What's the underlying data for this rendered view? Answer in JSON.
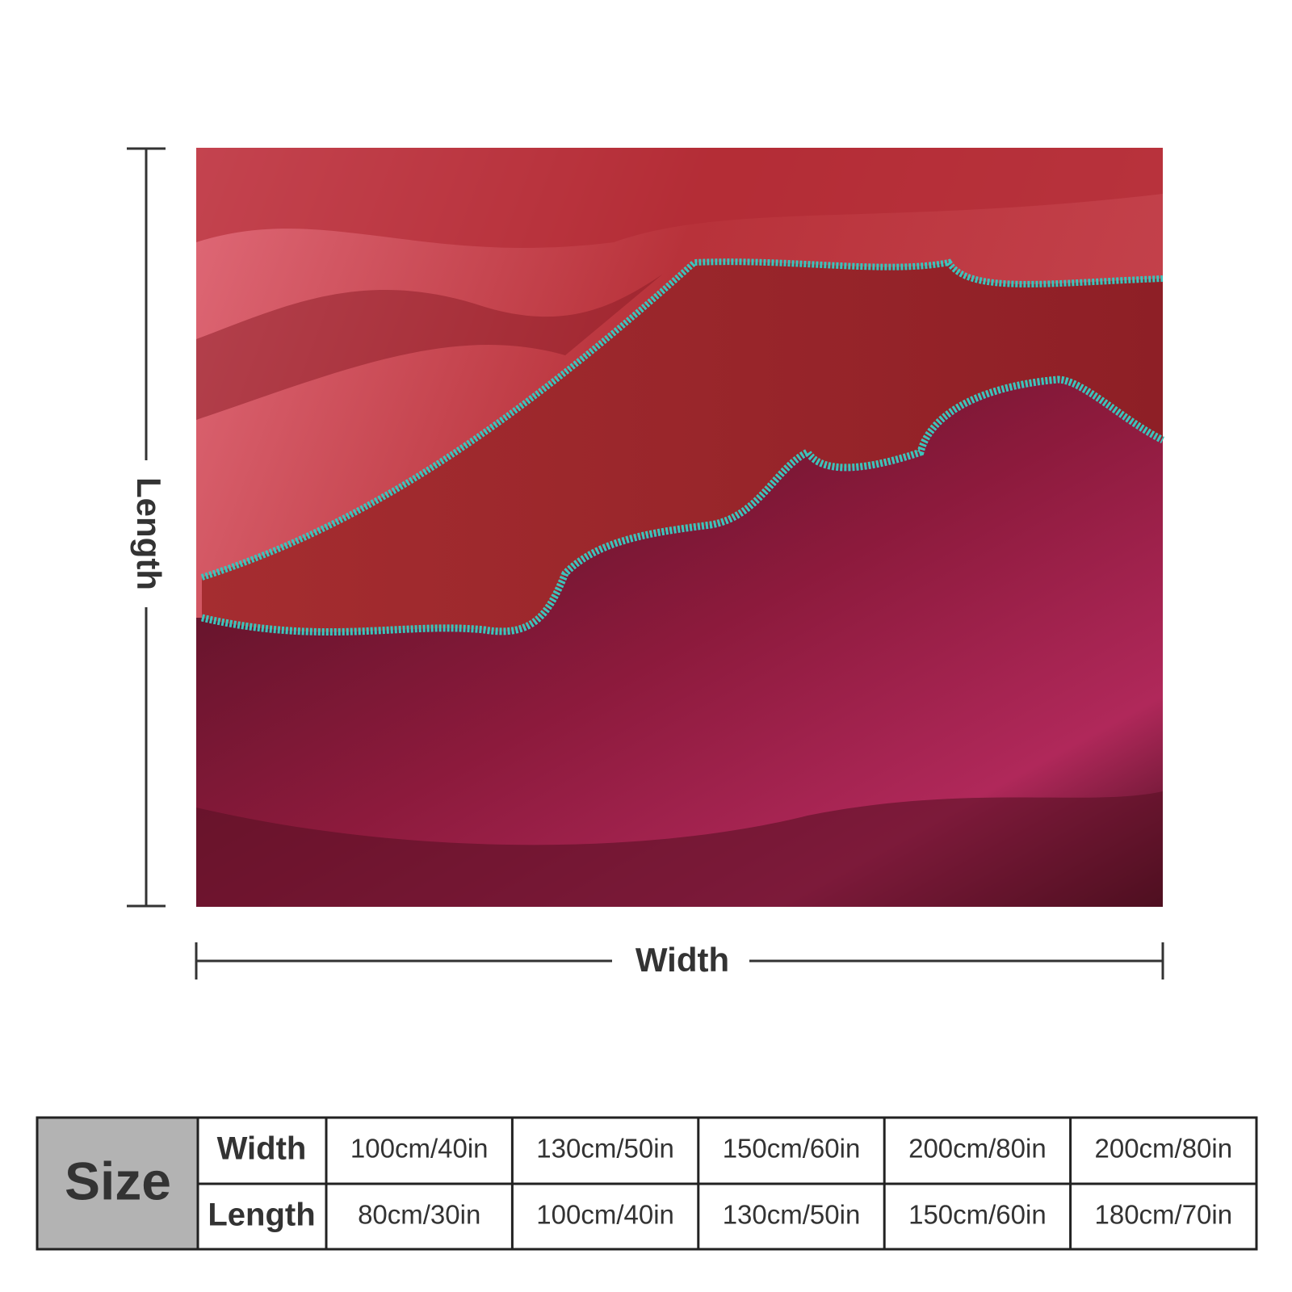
{
  "dimensions": {
    "length_label": "Length",
    "width_label": "Width"
  },
  "size_table": {
    "title": "Size",
    "rows": [
      {
        "label": "Width",
        "values": [
          "100cm/40in",
          "130cm/50in",
          "150cm/60in",
          "200cm/80in",
          "200cm/80in"
        ]
      },
      {
        "label": "Length",
        "values": [
          "80cm/30in",
          "100cm/40in",
          "130cm/50in",
          "150cm/60in",
          "180cm/70in"
        ]
      }
    ]
  }
}
